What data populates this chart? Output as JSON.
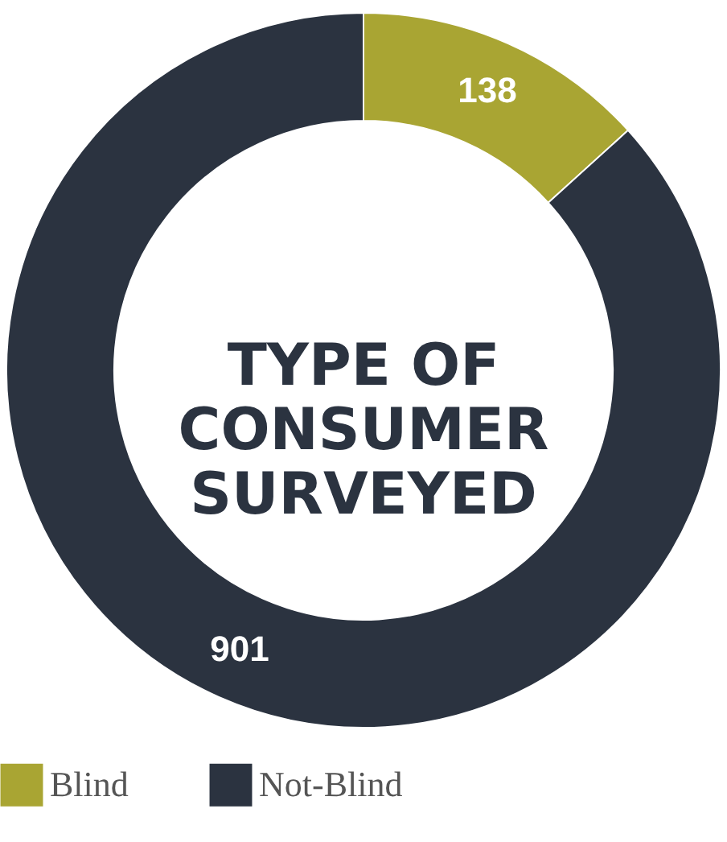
{
  "chart_data": {
    "type": "donut",
    "title": "TYPE OF\nCONSUMER\nSURVEYED",
    "categories": [
      "Blind",
      "Not-Blind"
    ],
    "values": [
      138,
      901
    ],
    "colors": [
      "#a9a533",
      "#2b3340"
    ],
    "data_labels": true,
    "legend": "bottom"
  }
}
